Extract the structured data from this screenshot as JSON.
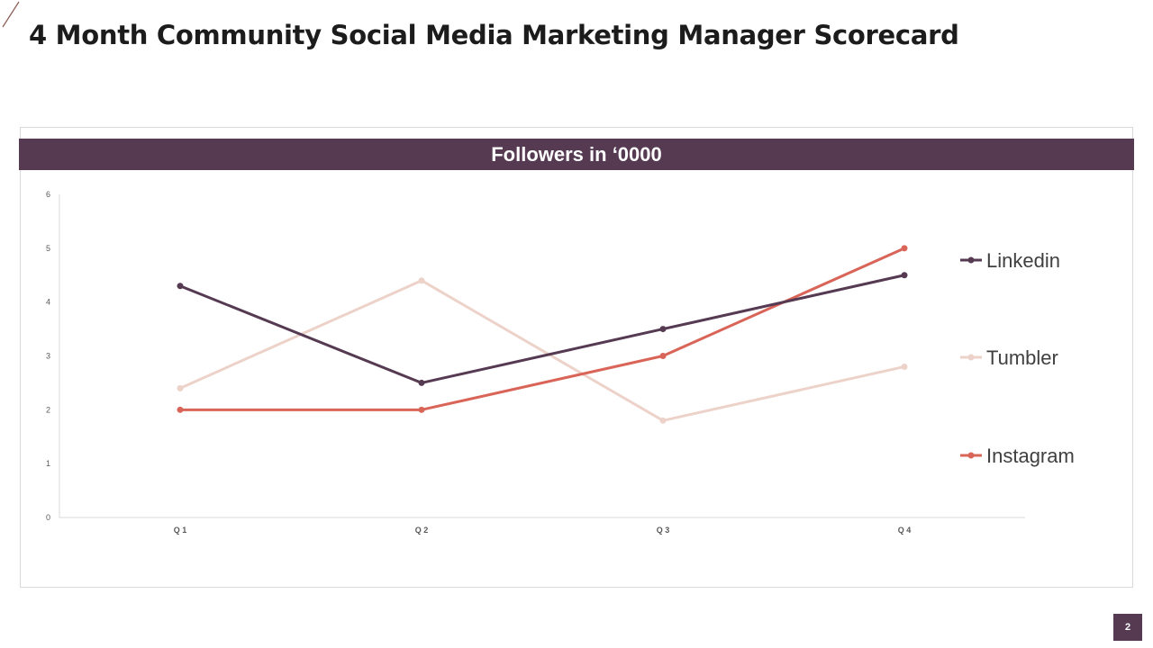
{
  "title": "4 Month Community Social Media Marketing Manager Scorecard",
  "page_number": "2",
  "colors": {
    "banner": "#553a52",
    "linkedin": "#553a52",
    "tumbler": "#ecd2c9",
    "instagram": "#d96458",
    "axis": "#d9d9d9",
    "tick_text": "#595959",
    "legend_text": "#404040"
  },
  "chart_data": {
    "type": "line",
    "title": "Followers in ‘0000",
    "categories": [
      "Q 1",
      "Q 2",
      "Q 3",
      "Q 4"
    ],
    "series": [
      {
        "name": "Linkedin",
        "values": [
          4.3,
          2.5,
          3.5,
          4.5
        ]
      },
      {
        "name": "Tumbler",
        "values": [
          2.4,
          4.4,
          1.8,
          2.8
        ]
      },
      {
        "name": "Instagram",
        "values": [
          2,
          2,
          3,
          5
        ]
      }
    ],
    "xlabel": "",
    "ylabel": "",
    "ylim": [
      0,
      6
    ],
    "yticks": [
      0,
      1,
      2,
      3,
      4,
      5,
      6
    ],
    "grid": false,
    "legend": "right"
  }
}
